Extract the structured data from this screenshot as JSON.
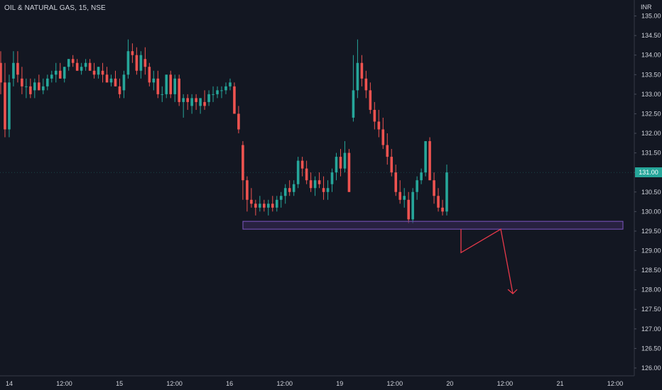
{
  "header": {
    "symbol_line": "OIL & NATURAL GAS, 15, NSE",
    "currency": "INR"
  },
  "last_price": "131.00",
  "colors": {
    "background": "#131722",
    "up": "#26a69a",
    "down": "#ef5350",
    "axis_text": "#d1d4dc",
    "zone_fill": "#3b2a5a",
    "zone_border": "#7e57c2",
    "projection": "#e8394a"
  },
  "chart_data": {
    "type": "candlestick",
    "y_axis": {
      "min": 125.8,
      "max": 135.3,
      "ticks": [
        "126.00",
        "126.50",
        "127.00",
        "127.50",
        "128.00",
        "128.50",
        "129.00",
        "129.50",
        "130.00",
        "130.50",
        "131.00",
        "131.50",
        "132.00",
        "132.50",
        "133.00",
        "133.50",
        "134.00",
        "134.50",
        "135.00"
      ]
    },
    "x_axis": {
      "labels": [
        "14",
        "12:00",
        "15",
        "12:00",
        "16",
        "12:00",
        "19",
        "12:00",
        "20",
        "12:00",
        "21",
        "12:00"
      ]
    },
    "candles": [
      [
        133.8,
        134.1,
        133.0,
        133.3
      ],
      [
        133.3,
        133.8,
        131.9,
        132.1
      ],
      [
        132.1,
        133.5,
        131.9,
        133.3
      ],
      [
        133.4,
        134.1,
        133.2,
        133.8
      ],
      [
        133.8,
        134.1,
        133.3,
        133.5
      ],
      [
        133.4,
        133.7,
        133.0,
        133.2
      ],
      [
        133.2,
        133.4,
        132.9,
        133.2
      ],
      [
        133.2,
        133.4,
        132.9,
        133.0
      ],
      [
        133.1,
        133.4,
        132.9,
        133.3
      ],
      [
        133.3,
        133.5,
        133.1,
        133.1
      ],
      [
        133.1,
        133.4,
        133.0,
        133.2
      ],
      [
        133.2,
        133.5,
        133.1,
        133.4
      ],
      [
        133.4,
        133.6,
        133.3,
        133.5
      ],
      [
        133.5,
        133.8,
        133.3,
        133.6
      ],
      [
        133.6,
        133.8,
        133.4,
        133.4
      ],
      [
        133.4,
        133.7,
        133.3,
        133.7
      ],
      [
        133.7,
        133.9,
        133.6,
        133.9
      ],
      [
        133.9,
        134.0,
        133.7,
        133.8
      ],
      [
        133.8,
        133.9,
        133.6,
        133.6
      ],
      [
        133.6,
        133.8,
        133.5,
        133.7
      ],
      [
        133.7,
        133.9,
        133.6,
        133.8
      ],
      [
        133.8,
        133.9,
        133.6,
        133.6
      ],
      [
        133.6,
        133.8,
        133.4,
        133.5
      ],
      [
        133.5,
        133.7,
        133.4,
        133.7
      ],
      [
        133.6,
        133.8,
        133.3,
        133.5
      ],
      [
        133.5,
        133.7,
        133.3,
        133.3
      ],
      [
        133.3,
        133.5,
        133.2,
        133.4
      ],
      [
        133.4,
        133.6,
        133.2,
        133.2
      ],
      [
        133.2,
        133.4,
        132.9,
        133.0
      ],
      [
        133.1,
        133.6,
        132.9,
        133.5
      ],
      [
        133.5,
        134.4,
        133.4,
        134.1
      ],
      [
        134.1,
        134.3,
        133.8,
        134.0
      ],
      [
        134.0,
        134.2,
        133.5,
        133.6
      ],
      [
        133.6,
        134.1,
        133.4,
        134.0
      ],
      [
        133.9,
        134.2,
        133.5,
        133.7
      ],
      [
        133.7,
        133.8,
        133.2,
        133.3
      ],
      [
        133.3,
        133.6,
        133.1,
        133.4
      ],
      [
        133.4,
        133.6,
        132.9,
        133.0
      ],
      [
        133.0,
        133.2,
        132.8,
        133.0
      ],
      [
        133.0,
        133.5,
        132.9,
        133.5
      ],
      [
        133.5,
        133.6,
        132.9,
        133.0
      ],
      [
        133.0,
        133.5,
        132.8,
        133.4
      ],
      [
        133.4,
        133.5,
        132.7,
        132.8
      ],
      [
        132.8,
        133.0,
        132.4,
        132.9
      ],
      [
        132.9,
        133.0,
        132.6,
        132.8
      ],
      [
        132.7,
        133.0,
        132.5,
        132.9
      ],
      [
        132.9,
        133.0,
        132.6,
        132.8
      ],
      [
        132.7,
        132.9,
        132.5,
        132.9
      ],
      [
        132.8,
        133.1,
        132.6,
        132.7
      ],
      [
        132.8,
        133.1,
        132.7,
        133.0
      ],
      [
        133.0,
        133.2,
        132.8,
        133.0
      ],
      [
        133.0,
        133.2,
        132.9,
        133.1
      ],
      [
        133.1,
        133.2,
        132.9,
        133.1
      ],
      [
        133.1,
        133.3,
        133.0,
        133.2
      ],
      [
        133.2,
        133.4,
        133.1,
        133.3
      ],
      [
        133.2,
        133.3,
        132.5,
        132.5
      ],
      [
        132.5,
        132.7,
        132.0,
        132.1
      ],
      [
        131.7,
        131.8,
        130.3,
        130.8
      ],
      [
        130.8,
        130.9,
        130.0,
        130.3
      ],
      [
        130.3,
        130.6,
        130.1,
        130.2
      ],
      [
        130.2,
        130.3,
        129.9,
        130.1
      ],
      [
        130.1,
        130.4,
        130.0,
        130.2
      ],
      [
        130.2,
        130.3,
        130.0,
        130.1
      ],
      [
        130.1,
        130.3,
        129.9,
        130.2
      ],
      [
        130.2,
        130.4,
        130.0,
        130.1
      ],
      [
        130.1,
        130.4,
        130.0,
        130.3
      ],
      [
        130.3,
        130.5,
        130.1,
        130.4
      ],
      [
        130.4,
        130.7,
        130.2,
        130.6
      ],
      [
        130.6,
        130.8,
        130.4,
        130.5
      ],
      [
        130.5,
        130.8,
        130.4,
        130.7
      ],
      [
        130.7,
        131.4,
        130.6,
        131.3
      ],
      [
        131.3,
        131.4,
        130.9,
        131.1
      ],
      [
        131.1,
        131.3,
        130.7,
        130.8
      ],
      [
        130.8,
        131.0,
        130.5,
        130.6
      ],
      [
        130.6,
        130.9,
        130.4,
        130.8
      ],
      [
        130.8,
        131.0,
        130.6,
        130.7
      ],
      [
        130.6,
        130.9,
        130.3,
        130.5
      ],
      [
        130.5,
        130.8,
        130.3,
        130.6
      ],
      [
        130.7,
        131.1,
        130.5,
        131.0
      ],
      [
        131.0,
        131.5,
        130.8,
        131.4
      ],
      [
        131.4,
        131.6,
        130.9,
        131.1
      ],
      [
        131.1,
        131.8,
        131.0,
        131.5
      ],
      [
        131.5,
        131.6,
        130.5,
        130.5
      ],
      [
        132.4,
        134.0,
        132.3,
        133.1
      ],
      [
        133.1,
        134.4,
        132.9,
        133.8
      ],
      [
        133.8,
        134.0,
        133.2,
        133.4
      ],
      [
        133.4,
        133.6,
        132.9,
        133.1
      ],
      [
        133.1,
        133.3,
        132.5,
        132.6
      ],
      [
        132.6,
        132.8,
        132.1,
        132.3
      ],
      [
        132.3,
        132.6,
        131.9,
        132.1
      ],
      [
        132.1,
        132.4,
        131.6,
        131.7
      ],
      [
        131.7,
        132.0,
        131.2,
        131.4
      ],
      [
        131.4,
        131.6,
        130.9,
        131.0
      ],
      [
        131.0,
        131.2,
        130.4,
        130.5
      ],
      [
        130.5,
        130.8,
        130.2,
        130.3
      ],
      [
        130.3,
        130.6,
        130.1,
        130.4
      ],
      [
        130.3,
        130.5,
        129.7,
        129.8
      ],
      [
        129.8,
        130.6,
        129.7,
        130.5
      ],
      [
        130.5,
        130.9,
        130.3,
        130.8
      ],
      [
        130.8,
        131.1,
        130.7,
        131.0
      ],
      [
        131.0,
        131.8,
        130.9,
        131.8
      ],
      [
        131.8,
        131.9,
        130.8,
        130.8
      ],
      [
        130.8,
        131.0,
        130.2,
        130.4
      ],
      [
        130.4,
        130.6,
        130.0,
        130.1
      ],
      [
        130.1,
        130.3,
        129.9,
        130.0
      ],
      [
        130.0,
        131.2,
        129.9,
        131.0
      ]
    ],
    "annotations": {
      "support_zone": {
        "y_top": 129.75,
        "y_bottom": 129.55
      },
      "projection_path": [
        [
          129.55,
          128.95
        ],
        [
          128.95,
          129.55
        ],
        [
          129.55,
          127.9
        ]
      ]
    }
  }
}
